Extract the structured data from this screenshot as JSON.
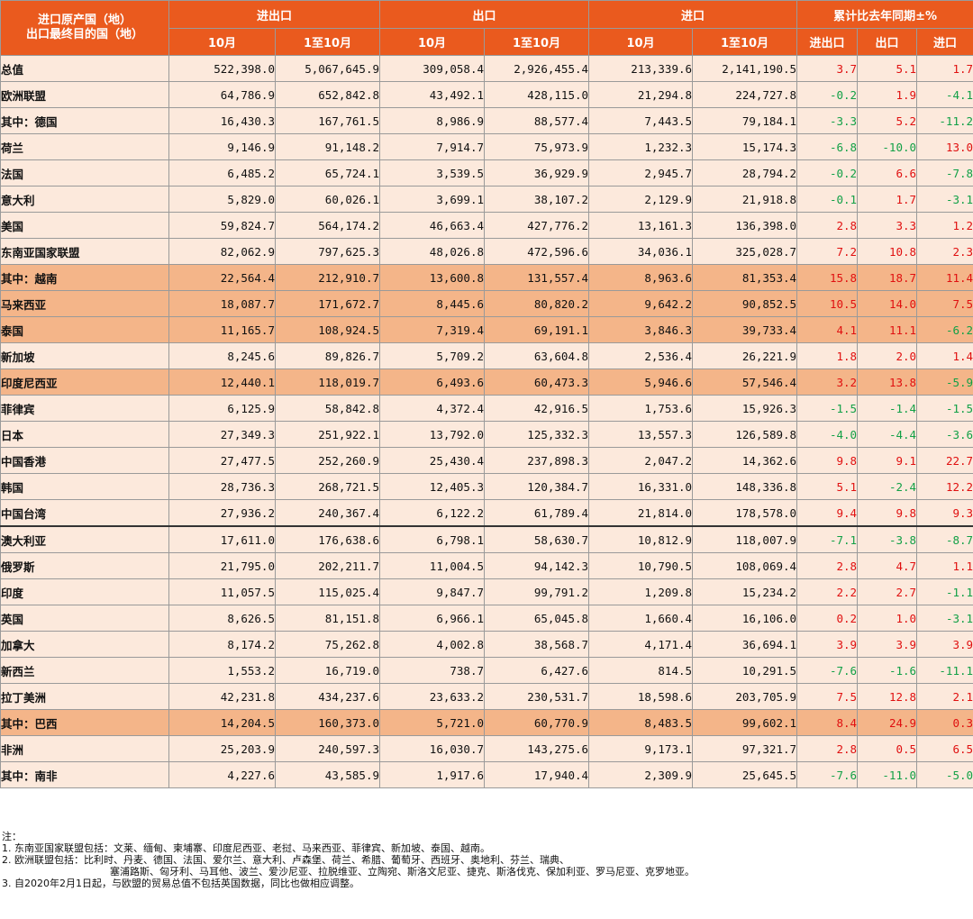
{
  "header": {
    "corner_line1": "进口原产国（地）",
    "corner_line2": "出口最终目的国（地）",
    "groups": [
      "进出口",
      "出口",
      "进口",
      "累计比去年同期±%"
    ],
    "subs": [
      "10月",
      "1至10月",
      "10月",
      "1至10月",
      "10月",
      "1至10月",
      "进出口",
      "出口",
      "进口"
    ]
  },
  "rows": [
    {
      "name": "总值",
      "indent": 0,
      "hl": false,
      "vals": [
        "522,398.0",
        "5,067,645.9",
        "309,058.4",
        "2,926,455.4",
        "213,339.6",
        "2,141,190.5"
      ],
      "pcts": [
        "3.7",
        "5.1",
        "1.7"
      ]
    },
    {
      "name": "欧洲联盟",
      "indent": 1,
      "hl": false,
      "vals": [
        "64,786.9",
        "652,842.8",
        "43,492.1",
        "428,115.0",
        "21,294.8",
        "224,727.8"
      ],
      "pcts": [
        "-0.2",
        "1.9",
        "-4.1"
      ]
    },
    {
      "name": "其中：德国",
      "indent": 2,
      "hl": false,
      "vals": [
        "16,430.3",
        "167,761.5",
        "8,986.9",
        "88,577.4",
        "7,443.5",
        "79,184.1"
      ],
      "pcts": [
        "-3.3",
        "5.2",
        "-11.2"
      ]
    },
    {
      "name": "荷兰",
      "indent": 3,
      "hl": false,
      "vals": [
        "9,146.9",
        "91,148.2",
        "7,914.7",
        "75,973.9",
        "1,232.3",
        "15,174.3"
      ],
      "pcts": [
        "-6.8",
        "-10.0",
        "13.0"
      ]
    },
    {
      "name": "法国",
      "indent": 3,
      "hl": false,
      "vals": [
        "6,485.2",
        "65,724.1",
        "3,539.5",
        "36,929.9",
        "2,945.7",
        "28,794.2"
      ],
      "pcts": [
        "-0.2",
        "6.6",
        "-7.8"
      ]
    },
    {
      "name": "意大利",
      "indent": 3,
      "hl": false,
      "vals": [
        "5,829.0",
        "60,026.1",
        "3,699.1",
        "38,107.2",
        "2,129.9",
        "21,918.8"
      ],
      "pcts": [
        "-0.1",
        "1.7",
        "-3.1"
      ]
    },
    {
      "name": "美国",
      "indent": 1,
      "hl": false,
      "vals": [
        "59,824.7",
        "564,174.2",
        "46,663.4",
        "427,776.2",
        "13,161.3",
        "136,398.0"
      ],
      "pcts": [
        "2.8",
        "3.3",
        "1.2"
      ]
    },
    {
      "name": "东南亚国家联盟",
      "indent": 1,
      "hl": false,
      "vals": [
        "82,062.9",
        "797,625.3",
        "48,026.8",
        "472,596.6",
        "34,036.1",
        "325,028.7"
      ],
      "pcts": [
        "7.2",
        "10.8",
        "2.3"
      ]
    },
    {
      "name": "其中：越南",
      "indent": 2,
      "hl": true,
      "vals": [
        "22,564.4",
        "212,910.7",
        "13,600.8",
        "131,557.4",
        "8,963.6",
        "81,353.4"
      ],
      "pcts": [
        "15.8",
        "18.7",
        "11.4"
      ]
    },
    {
      "name": "马来西亚",
      "indent": 3,
      "hl": true,
      "vals": [
        "18,087.7",
        "171,672.7",
        "8,445.6",
        "80,820.2",
        "9,642.2",
        "90,852.5"
      ],
      "pcts": [
        "10.5",
        "14.0",
        "7.5"
      ]
    },
    {
      "name": "泰国",
      "indent": 3,
      "hl": true,
      "vals": [
        "11,165.7",
        "108,924.5",
        "7,319.4",
        "69,191.1",
        "3,846.3",
        "39,733.4"
      ],
      "pcts": [
        "4.1",
        "11.1",
        "-6.2"
      ]
    },
    {
      "name": "新加坡",
      "indent": 3,
      "hl": false,
      "vals": [
        "8,245.6",
        "89,826.7",
        "5,709.2",
        "63,604.8",
        "2,536.4",
        "26,221.9"
      ],
      "pcts": [
        "1.8",
        "2.0",
        "1.4"
      ]
    },
    {
      "name": "印度尼西亚",
      "indent": 3,
      "hl": true,
      "vals": [
        "12,440.1",
        "118,019.7",
        "6,493.6",
        "60,473.3",
        "5,946.6",
        "57,546.4"
      ],
      "pcts": [
        "3.2",
        "13.8",
        "-5.9"
      ]
    },
    {
      "name": "菲律宾",
      "indent": 3,
      "hl": false,
      "vals": [
        "6,125.9",
        "58,842.8",
        "4,372.4",
        "42,916.5",
        "1,753.6",
        "15,926.3"
      ],
      "pcts": [
        "-1.5",
        "-1.4",
        "-1.5"
      ]
    },
    {
      "name": "日本",
      "indent": 1,
      "hl": false,
      "vals": [
        "27,349.3",
        "251,922.1",
        "13,792.0",
        "125,332.3",
        "13,557.3",
        "126,589.8"
      ],
      "pcts": [
        "-4.0",
        "-4.4",
        "-3.6"
      ]
    },
    {
      "name": "中国香港",
      "indent": 1,
      "hl": false,
      "vals": [
        "27,477.5",
        "252,260.9",
        "25,430.4",
        "237,898.3",
        "2,047.2",
        "14,362.6"
      ],
      "pcts": [
        "9.8",
        "9.1",
        "22.7"
      ]
    },
    {
      "name": "韩国",
      "indent": 1,
      "hl": false,
      "vals": [
        "28,736.3",
        "268,721.5",
        "12,405.3",
        "120,384.7",
        "16,331.0",
        "148,336.8"
      ],
      "pcts": [
        "5.1",
        "-2.4",
        "12.2"
      ]
    },
    {
      "name": "中国台湾",
      "indent": 1,
      "hl": false,
      "vals": [
        "27,936.2",
        "240,367.4",
        "6,122.2",
        "61,789.4",
        "21,814.0",
        "178,578.0"
      ],
      "pcts": [
        "9.4",
        "9.8",
        "9.3"
      ]
    },
    {
      "name": "澳大利亚",
      "indent": 1,
      "hl": false,
      "div": true,
      "vals": [
        "17,611.0",
        "176,638.6",
        "6,798.1",
        "58,630.7",
        "10,812.9",
        "118,007.9"
      ],
      "pcts": [
        "-7.1",
        "-3.8",
        "-8.7"
      ]
    },
    {
      "name": "俄罗斯",
      "indent": 1,
      "hl": false,
      "vals": [
        "21,795.0",
        "202,211.7",
        "11,004.5",
        "94,142.3",
        "10,790.5",
        "108,069.4"
      ],
      "pcts": [
        "2.8",
        "4.7",
        "1.1"
      ]
    },
    {
      "name": "印度",
      "indent": 1,
      "hl": false,
      "vals": [
        "11,057.5",
        "115,025.4",
        "9,847.7",
        "99,791.2",
        "1,209.8",
        "15,234.2"
      ],
      "pcts": [
        "2.2",
        "2.7",
        "-1.1"
      ]
    },
    {
      "name": "英国",
      "indent": 1,
      "hl": false,
      "vals": [
        "8,626.5",
        "81,151.8",
        "6,966.1",
        "65,045.8",
        "1,660.4",
        "16,106.0"
      ],
      "pcts": [
        "0.2",
        "1.0",
        "-3.1"
      ]
    },
    {
      "name": "加拿大",
      "indent": 1,
      "hl": false,
      "vals": [
        "8,174.2",
        "75,262.8",
        "4,002.8",
        "38,568.7",
        "4,171.4",
        "36,694.1"
      ],
      "pcts": [
        "3.9",
        "3.9",
        "3.9"
      ]
    },
    {
      "name": "新西兰",
      "indent": 1,
      "hl": false,
      "vals": [
        "1,553.2",
        "16,719.0",
        "738.7",
        "6,427.6",
        "814.5",
        "10,291.5"
      ],
      "pcts": [
        "-7.6",
        "-1.6",
        "-11.1"
      ]
    },
    {
      "name": "拉丁美洲",
      "indent": 1,
      "hl": false,
      "vals": [
        "42,231.8",
        "434,237.6",
        "23,633.2",
        "230,531.7",
        "18,598.6",
        "203,705.9"
      ],
      "pcts": [
        "7.5",
        "12.8",
        "2.1"
      ]
    },
    {
      "name": "其中：巴西",
      "indent": 2,
      "hl": true,
      "vals": [
        "14,204.5",
        "160,373.0",
        "5,721.0",
        "60,770.9",
        "8,483.5",
        "99,602.1"
      ],
      "pcts": [
        "8.4",
        "24.9",
        "0.3"
      ]
    },
    {
      "name": "非洲",
      "indent": 1,
      "hl": false,
      "vals": [
        "25,203.9",
        "240,597.3",
        "16,030.7",
        "143,275.6",
        "9,173.1",
        "97,321.7"
      ],
      "pcts": [
        "2.8",
        "0.5",
        "6.5"
      ]
    },
    {
      "name": "其中：南非",
      "indent": 2,
      "hl": false,
      "vals": [
        "4,227.6",
        "43,585.9",
        "1,917.6",
        "17,940.4",
        "2,309.9",
        "25,645.5"
      ],
      "pcts": [
        "-7.6",
        "-11.0",
        "-5.0"
      ]
    }
  ],
  "colors": {
    "header_bg": "#ea5a1e",
    "row_bg": "#fce9dc",
    "highlight_bg": "#f4b589",
    "positive": "#e01010",
    "negative": "#12a046"
  },
  "notes": {
    "title": "注：",
    "n1": "1.  东南亚国家联盟包括：文莱、缅甸、柬埔寨、印度尼西亚、老挝、马来西亚、菲律宾、新加坡、泰国、越南。",
    "n2a": "2.  欧洲联盟包括：比利时、丹麦、德国、法国、爱尔兰、意大利、卢森堡、荷兰、希腊、葡萄牙、西班牙、奥地利、芬兰、瑞典、",
    "n2b": "塞浦路斯、匈牙利、马耳他、波兰、爱沙尼亚、拉脱维亚、立陶宛、斯洛文尼亚、捷克、斯洛伐克、保加利亚、罗马尼亚、克罗地亚。",
    "n3": "3.  自2020年2月1日起，与欧盟的贸易总值不包括英国数据，同比也做相应调整。"
  }
}
